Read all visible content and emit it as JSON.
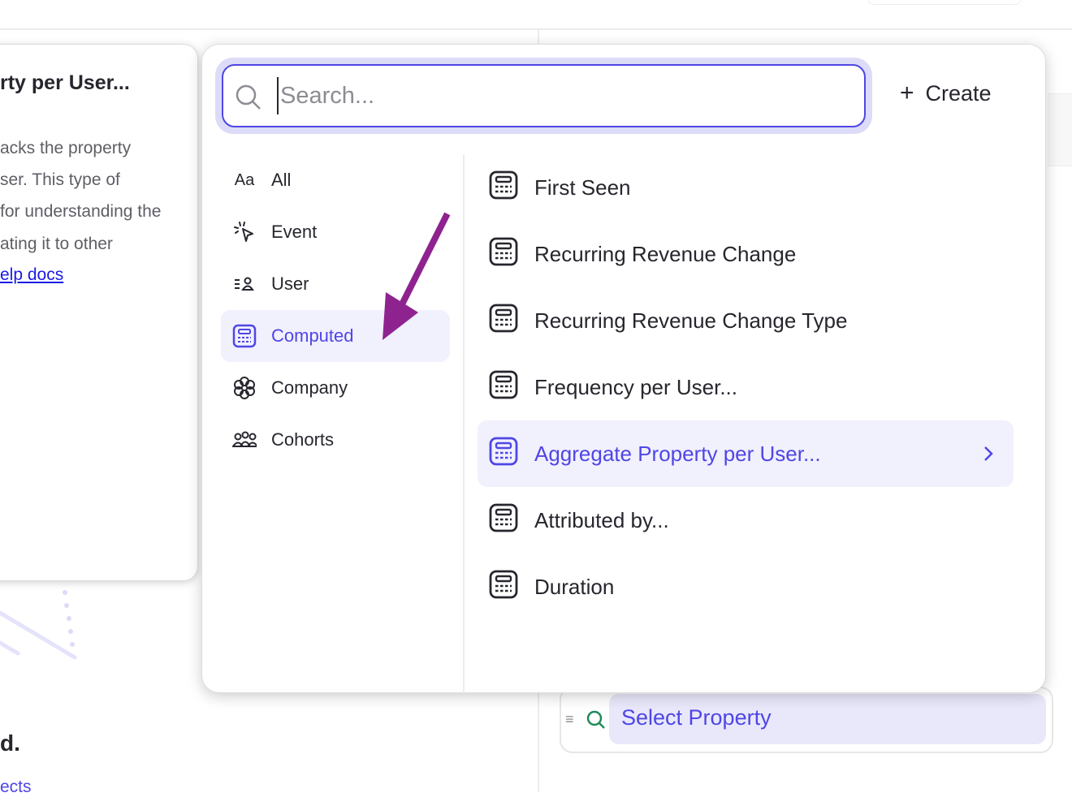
{
  "info_card": {
    "title": "rty per User...",
    "lines": [
      "acks the property",
      "ser. This type of",
      "for understanding the",
      "ating it to other"
    ],
    "link": "elp docs"
  },
  "background": {
    "heading_fragment": "d.",
    "link_fragment": "ects"
  },
  "search": {
    "placeholder": "Search...",
    "value": ""
  },
  "create_label": "Create",
  "categories": [
    {
      "label": "All",
      "icon": "text-aa-icon"
    },
    {
      "label": "Event",
      "icon": "cursor-click-icon"
    },
    {
      "label": "User",
      "icon": "user-list-icon"
    },
    {
      "label": "Computed",
      "icon": "calculator-icon",
      "active": true
    },
    {
      "label": "Company",
      "icon": "company-flower-icon"
    },
    {
      "label": "Cohorts",
      "icon": "group-icon"
    }
  ],
  "items": [
    {
      "label": "First Seen"
    },
    {
      "label": "Recurring Revenue Change"
    },
    {
      "label": "Recurring Revenue Change Type"
    },
    {
      "label": "Frequency per User..."
    },
    {
      "label": "Aggregate Property per User...",
      "active": true
    },
    {
      "label": "Attributed by..."
    },
    {
      "label": "Duration"
    }
  ],
  "select_property": "Select Property",
  "colors": {
    "accent": "#4f46e5",
    "highlight": "#f1f0fd",
    "annotation_arrow": "#8e2390",
    "search_green": "#1f8a5a"
  }
}
